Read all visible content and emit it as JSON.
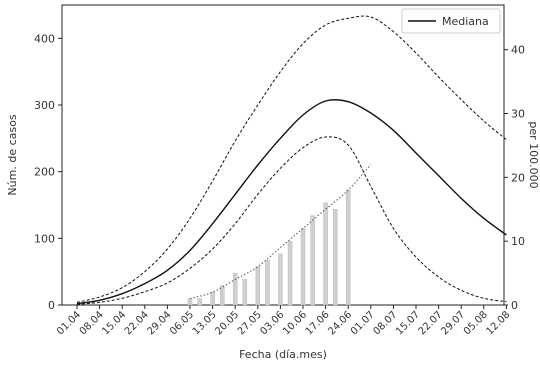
{
  "chart_data": {
    "type": "line",
    "xlabel": "Fecha (día.mes)",
    "ylabel": "Núm. de casos",
    "y2label": "per 100.000",
    "ylim": [
      0,
      450
    ],
    "y2lim": [
      0,
      47
    ],
    "yticks": [
      0,
      100,
      200,
      300,
      400
    ],
    "y2ticks": [
      0,
      10,
      20,
      30,
      40
    ],
    "grid": false,
    "legend": {
      "placement": "top-right",
      "entries": [
        "Mediana"
      ]
    },
    "x": [
      "01.04",
      "08.04",
      "15.04",
      "22.04",
      "29.04",
      "06.05",
      "13.05",
      "20.05",
      "27.05",
      "03.06",
      "10.06",
      "17.06",
      "24.06",
      "01.07",
      "08.07",
      "15.07",
      "22.07",
      "29.07",
      "05.08",
      "12.08"
    ],
    "series": [
      {
        "name": "Mediana",
        "style": "solid",
        "axis": "left",
        "values": [
          2,
          7,
          17,
          32,
          52,
          82,
          122,
          166,
          210,
          250,
          285,
          306,
          305,
          288,
          262,
          228,
          194,
          160,
          130,
          105
        ]
      },
      {
        "name": "",
        "style": "dashed",
        "axis": "left",
        "values": [
          4,
          12,
          26,
          50,
          84,
          130,
          186,
          246,
          300,
          350,
          392,
          420,
          430,
          432,
          410,
          378,
          342,
          308,
          276,
          248
        ]
      },
      {
        "name": "",
        "style": "dashed",
        "axis": "left",
        "values": [
          1,
          4,
          10,
          20,
          33,
          55,
          84,
          122,
          166,
          205,
          236,
          252,
          240,
          178,
          115,
          72,
          42,
          22,
          10,
          5
        ]
      },
      {
        "name": "",
        "style": "dotted",
        "axis": "right",
        "values": [
          null,
          null,
          null,
          null,
          null,
          1,
          2,
          4,
          6,
          9,
          12,
          15,
          18,
          22,
          null,
          null,
          null,
          null,
          null,
          null
        ]
      }
    ],
    "bars": {
      "axis": "right",
      "x": [
        "06.05",
        "09.05",
        "13.05",
        "16.05",
        "20.05",
        "23.05",
        "27.05",
        "30.05",
        "03.06",
        "06.06",
        "10.06",
        "13.06",
        "17.06",
        "20.06",
        "24.06"
      ],
      "values": [
        1,
        1,
        2,
        3,
        5,
        4,
        6,
        7,
        8,
        10,
        12,
        14,
        16,
        15,
        18
      ]
    }
  }
}
